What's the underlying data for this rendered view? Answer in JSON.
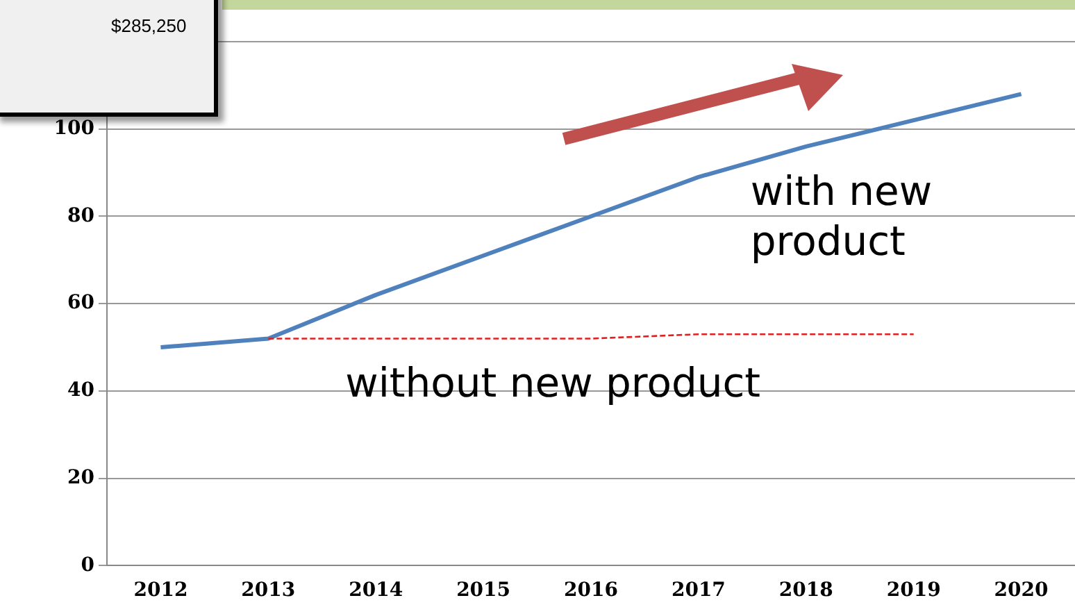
{
  "chart_data": {
    "type": "line",
    "categories": [
      "2012",
      "2013",
      "2014",
      "2015",
      "2016",
      "2017",
      "2018",
      "2019",
      "2020"
    ],
    "series": [
      {
        "name": "with new product",
        "color": "#4f81bd",
        "values": [
          50,
          52,
          62,
          71,
          80,
          89,
          96,
          102,
          108
        ]
      },
      {
        "name": "without new product",
        "color": "#e02020",
        "line_style": "dashed",
        "values": [
          null,
          52,
          52,
          52,
          52,
          53,
          53,
          53,
          null
        ]
      }
    ],
    "ylim": [
      0,
      120
    ],
    "yticks": [
      0,
      20,
      40,
      60,
      80,
      100,
      {
        "value": 120,
        "label": null
      }
    ],
    "grid": "y",
    "legend": false,
    "marker": "none",
    "annotations": [
      "$285,250"
    ]
  }
}
